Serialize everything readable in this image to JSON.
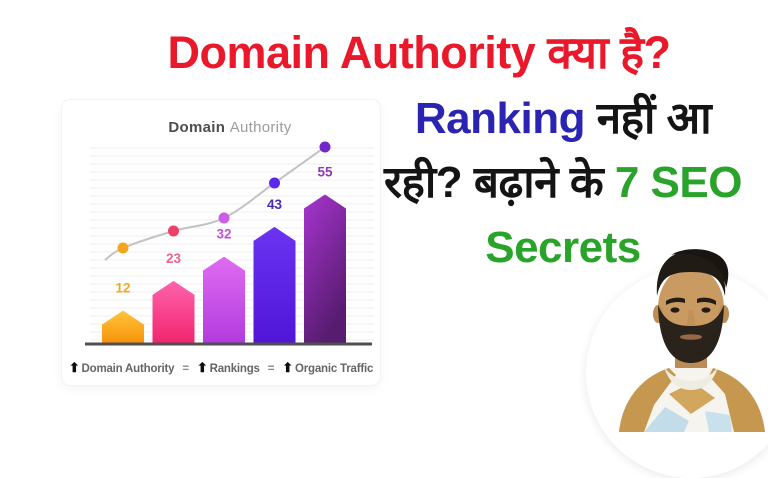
{
  "headline": {
    "lines": [
      [
        {
          "text": "Domain Authority क्या है?",
          "color": "#E9192B"
        }
      ],
      [
        {
          "text": "Ranking ",
          "color": "#2B24B2"
        },
        {
          "text": "नहीं आ",
          "color": "#141414"
        }
      ],
      [
        {
          "text": "रही? बढ़ाने के ",
          "color": "#141414"
        },
        {
          "text": "7 SEO",
          "color": "#29A32A"
        }
      ],
      [
        {
          "text": "Secrets",
          "color": "#29A32A"
        }
      ]
    ]
  },
  "chart_data": {
    "type": "bar",
    "title": {
      "bold": "Domain",
      "light": "Authority"
    },
    "categories": [
      "",
      "",
      "",
      "",
      ""
    ],
    "values": [
      12,
      23,
      32,
      43,
      55
    ],
    "ylim": [
      0,
      60
    ],
    "grid": "horizontal",
    "legend": "none",
    "bar_gradients": [
      [
        "#FFC53A",
        "#F5930B"
      ],
      [
        "#FF64AC",
        "#F2246F"
      ],
      [
        "#E06CF2",
        "#B23BDE"
      ],
      [
        "#6B33F2",
        "#4F16D8"
      ],
      [
        "#A735CF",
        "#571C70"
      ]
    ],
    "label_colors": [
      "#F5A51D",
      "#F0618F",
      "#C050D8",
      "#4A2BB5",
      "#9138B8"
    ],
    "dot_colors": [
      "#F5A51D",
      "#EE4168",
      "#CE5CE4",
      "#5A28E8",
      "#7326C9"
    ],
    "line_color": "#C3C3C3",
    "axis_color": "#4F4F4F",
    "title_bold_color": "#4E4E4E",
    "title_light_color": "#9C9C9C",
    "caption": {
      "arrow": "⬆",
      "equals": "=",
      "parts": [
        "Domain Authority",
        "Rankings",
        "Organic Traffic"
      ]
    }
  },
  "accent_colors": {
    "red": "#E9192B",
    "blue": "#2B24B2",
    "green": "#29A32A",
    "black": "#141414"
  }
}
